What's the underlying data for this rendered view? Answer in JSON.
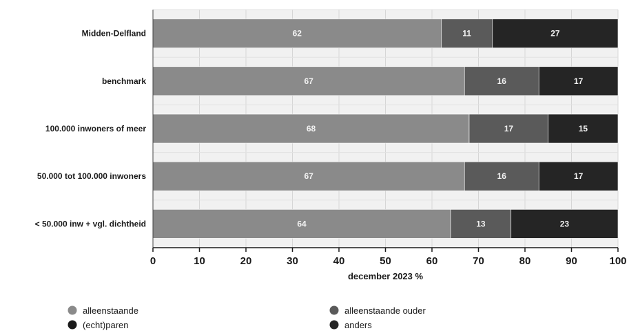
{
  "chart_data": {
    "type": "bar",
    "orientation": "horizontal",
    "stacked": true,
    "categories": [
      "Midden-Delfland",
      "benchmark",
      "100.000 inwoners of meer",
      "50.000 tot 100.000 inwoners",
      "< 50.000 inw + vgl. dichtheid"
    ],
    "series": [
      {
        "name": "alleenstaande",
        "color": "#8a8a8a",
        "values": [
          62,
          67,
          68,
          67,
          64
        ]
      },
      {
        "name": "alleenstaande ouder",
        "color": "#5a5a5a",
        "values": [
          11,
          16,
          17,
          16,
          13
        ]
      },
      {
        "name": "(echt)paren",
        "color": "#1a1a1a",
        "values": [
          null,
          null,
          null,
          null,
          null
        ]
      },
      {
        "name": "anders",
        "color": "#252525",
        "values": [
          27,
          17,
          15,
          17,
          23
        ]
      }
    ],
    "bar_label_series": [
      "alleenstaande",
      "alleenstaande ouder",
      "anders"
    ],
    "xlabel": "december 2023 %",
    "xlim": [
      0,
      100
    ],
    "xticks": [
      0,
      10,
      20,
      30,
      40,
      50,
      60,
      70,
      80,
      90,
      100
    ],
    "grid": true,
    "legend": {
      "placement": "bottom",
      "order": [
        "alleenstaande",
        "alleenstaande ouder",
        "(echt)paren",
        "anders"
      ]
    }
  }
}
